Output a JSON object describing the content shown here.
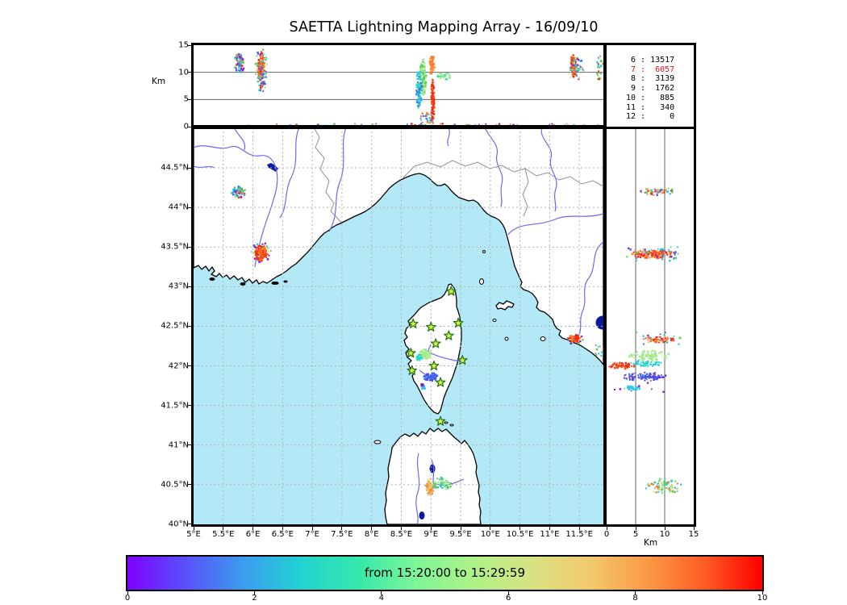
{
  "title": "SAETTA Lightning Mapping Array - 16/09/10",
  "axes": {
    "top": {
      "ylabel": "Km",
      "yticks": [
        {
          "km": 15,
          "label": "15"
        },
        {
          "km": 10,
          "label": "10"
        },
        {
          "km": 5,
          "label": "5"
        },
        {
          "km": 0,
          "label": "0"
        }
      ]
    },
    "map": {
      "lon_ticks": [
        {
          "deg": 5,
          "label": "5°E"
        },
        {
          "deg": 5.5,
          "label": "5.5°E"
        },
        {
          "deg": 6,
          "label": "6°E"
        },
        {
          "deg": 6.5,
          "label": "6.5°E"
        },
        {
          "deg": 7,
          "label": "7°E"
        },
        {
          "deg": 7.5,
          "label": "7.5°E"
        },
        {
          "deg": 8,
          "label": "8°E"
        },
        {
          "deg": 8.5,
          "label": "8.5°E"
        },
        {
          "deg": 9,
          "label": "9°E"
        },
        {
          "deg": 9.5,
          "label": "9.5°E"
        },
        {
          "deg": 10,
          "label": "10°E"
        },
        {
          "deg": 10.5,
          "label": "10.5°E"
        },
        {
          "deg": 11,
          "label": "11°E"
        },
        {
          "deg": 11.5,
          "label": "11.5°E"
        }
      ],
      "lat_ticks": [
        {
          "deg": 44.5,
          "label": "44.5°N"
        },
        {
          "deg": 44,
          "label": "44°N"
        },
        {
          "deg": 43.5,
          "label": "43.5°N"
        },
        {
          "deg": 43,
          "label": "43°N"
        },
        {
          "deg": 42.5,
          "label": "42.5°N"
        },
        {
          "deg": 42,
          "label": "42°N"
        },
        {
          "deg": 41.5,
          "label": "41.5°N"
        },
        {
          "deg": 41,
          "label": "41°N"
        },
        {
          "deg": 40.5,
          "label": "40.5°N"
        },
        {
          "deg": 40,
          "label": "40°N"
        }
      ]
    },
    "right": {
      "xlabel": "Km",
      "xticks": [
        {
          "km": 0,
          "label": "0"
        },
        {
          "km": 5,
          "label": "5"
        },
        {
          "km": 10,
          "label": "10"
        },
        {
          "km": 15,
          "label": "15"
        }
      ]
    }
  },
  "stats": {
    "rows": [
      {
        "label": "6",
        "value": "13517",
        "highlight": false
      },
      {
        "label": "7",
        "value": "6057",
        "highlight": true
      },
      {
        "label": "8",
        "value": "3139",
        "highlight": false
      },
      {
        "label": "9",
        "value": "1762",
        "highlight": false
      },
      {
        "label": "10",
        "value": "885",
        "highlight": false
      },
      {
        "label": "11",
        "value": "340",
        "highlight": false
      },
      {
        "label": "12",
        "value": "0",
        "highlight": false
      }
    ]
  },
  "colorbar": {
    "label": "from 15:20:00 to 15:29:59",
    "ticks": [
      "0",
      "2",
      "4",
      "6",
      "8",
      "10"
    ],
    "gradient": [
      "#7f00ff",
      "#5a50fa",
      "#3b9cee",
      "#22d2d2",
      "#35e8ac",
      "#7ef598",
      "#aef287",
      "#d8e383",
      "#f2c96e",
      "#fa9a46",
      "#fd5c24",
      "#ff0000"
    ]
  },
  "colors": {
    "sea": "#b3e9f7",
    "land": "#ffffff",
    "coast": "#000000",
    "river": "#6a6af0",
    "lake": "#0a1a9a",
    "boundary": "#909090",
    "grid_dash": "#b0b0b0",
    "panel_line": "#666666",
    "station_fill": "#d9f33c",
    "station_stroke": "#267a1e",
    "stat_highlight": "#ee1111",
    "dot_palette": {
      "purple": "#8a18e8",
      "indigo": "#5246dd",
      "blue": "#3a6ef2",
      "cyan": "#2fc8e8",
      "teal": "#2edfb2",
      "lightgreen": "#a4e98c",
      "green": "#54cc54",
      "tan": "#e2cb74",
      "orange": "#f9822e",
      "orangered": "#f85218",
      "red": "#f02810"
    }
  },
  "chart_data": {
    "type": "scatter",
    "title": "SAETTA Lightning Mapping Array - 16/09/10",
    "time_window": "from 15:20:00 to 15:29:59",
    "colorbar_range": [
      0,
      10
    ],
    "projection": {
      "lon_range_deg_e": [
        5,
        11.9
      ],
      "lat_range_deg_n": [
        40,
        45.01
      ],
      "alt_range_km": [
        0,
        15
      ]
    },
    "counts_table": [
      [
        "6",
        "13517"
      ],
      [
        "7",
        "6057"
      ],
      [
        "8",
        "3139"
      ],
      [
        "9",
        "1762"
      ],
      [
        "10",
        "885"
      ],
      [
        "11",
        "340"
      ],
      [
        "12",
        "0"
      ]
    ],
    "stations_lonlat": [
      [
        9.34,
        42.94
      ],
      [
        8.7,
        42.53
      ],
      [
        9.0,
        42.49
      ],
      [
        9.46,
        42.54
      ],
      [
        9.3,
        42.38
      ],
      [
        9.08,
        42.28
      ],
      [
        8.66,
        42.16
      ],
      [
        9.53,
        42.07
      ],
      [
        9.05,
        42.0
      ],
      [
        8.68,
        41.94
      ],
      [
        9.16,
        41.79
      ],
      [
        9.16,
        41.3
      ]
    ],
    "clusters": [
      {
        "view": "lon_alt",
        "u": 5.77,
        "v": 11.7,
        "ru": 0.085,
        "rv": 1.9,
        "n": 80,
        "colors": [
          "cyan",
          "teal",
          "green",
          "orange",
          "purple",
          "blue",
          "red"
        ]
      },
      {
        "view": "lon_alt",
        "u": 6.14,
        "v": 10.4,
        "ru": 0.055,
        "rv": 3.4,
        "n": 150,
        "colors": [
          "red",
          "orangered",
          "orange"
        ]
      },
      {
        "view": "lon_alt",
        "u": 6.14,
        "v": 10.2,
        "ru": 0.1,
        "rv": 4.3,
        "n": 60,
        "colors": [
          "cyan",
          "teal",
          "green",
          "purple",
          "blue",
          "tan"
        ]
      },
      {
        "view": "lon_alt",
        "u": 8.87,
        "v": 9.2,
        "ru": 0.065,
        "rv": 3.3,
        "n": 110,
        "colors": [
          "lightgreen",
          "green"
        ]
      },
      {
        "view": "lon_alt",
        "u": 8.8,
        "v": 7.0,
        "ru": 0.05,
        "rv": 3.7,
        "n": 100,
        "colors": [
          "cyan",
          "teal",
          "blue"
        ]
      },
      {
        "view": "lon_alt",
        "u": 9.03,
        "v": 4.7,
        "ru": 0.032,
        "rv": 4.2,
        "n": 130,
        "colors": [
          "red",
          "orangered"
        ]
      },
      {
        "view": "lon_alt",
        "u": 9.22,
        "v": 9.3,
        "ru": 0.12,
        "rv": 0.8,
        "n": 40,
        "colors": [
          "lightgreen",
          "teal"
        ]
      },
      {
        "view": "lon_alt",
        "u": 9.02,
        "v": 11.4,
        "ru": 0.05,
        "rv": 1.9,
        "n": 60,
        "colors": [
          "orange"
        ]
      },
      {
        "view": "lon_alt",
        "u": 8.93,
        "v": 1.2,
        "ru": 0.11,
        "rv": 1.3,
        "n": 30,
        "colors": [
          "cyan",
          "green",
          "orange",
          "blue"
        ],
        "uniform": true
      },
      {
        "view": "lon_alt",
        "u": 11.4,
        "v": 11.2,
        "ru": 0.05,
        "rv": 2.1,
        "n": 80,
        "colors": [
          "red",
          "orangered",
          "orange"
        ]
      },
      {
        "view": "lon_alt",
        "u": 11.45,
        "v": 10.7,
        "ru": 0.125,
        "rv": 2.7,
        "n": 45,
        "colors": [
          "cyan",
          "purple",
          "green",
          "tan",
          "blue"
        ]
      },
      {
        "view": "lon_alt",
        "u": 11.85,
        "v": 10.8,
        "ru": 0.07,
        "rv": 2.3,
        "n": 25,
        "colors": [
          "green",
          "red",
          "cyan",
          "orange"
        ]
      },
      {
        "view": "lon_alt",
        "u": 8.8,
        "v": 0.25,
        "ru": 3.05,
        "rv": 0.3,
        "n": 55,
        "colors": [
          "blue",
          "cyan",
          "orange",
          "green",
          "purple",
          "red"
        ],
        "uniform": true
      },
      {
        "view": "map",
        "u": 5.76,
        "v": 44.19,
        "ru": 0.12,
        "rv": 0.08,
        "n": 70,
        "colors": [
          "cyan",
          "teal",
          "orange",
          "red",
          "green",
          "purple",
          "blue"
        ]
      },
      {
        "view": "map",
        "u": 6.14,
        "v": 43.42,
        "ru": 0.17,
        "rv": 0.14,
        "n": 35,
        "colors": [
          "purple",
          "cyan",
          "green",
          "tan"
        ]
      },
      {
        "view": "map",
        "u": 6.14,
        "v": 43.42,
        "ru": 0.11,
        "rv": 0.1,
        "n": 130,
        "colors": [
          "orange",
          "red",
          "orangered"
        ]
      },
      {
        "view": "map",
        "u": 8.9,
        "v": 42.15,
        "ru": 0.1,
        "rv": 0.065,
        "n": 75,
        "colors": [
          "lightgreen"
        ]
      },
      {
        "view": "map",
        "u": 8.8,
        "v": 42.1,
        "ru": 0.055,
        "rv": 0.05,
        "n": 30,
        "colors": [
          "cyan",
          "teal"
        ]
      },
      {
        "view": "map",
        "u": 9.0,
        "v": 41.86,
        "ru": 0.13,
        "rv": 0.05,
        "n": 75,
        "colors": [
          "indigo",
          "blue"
        ]
      },
      {
        "view": "map",
        "u": 8.87,
        "v": 41.73,
        "ru": 0.04,
        "rv": 0.03,
        "n": 12,
        "colors": [
          "cyan"
        ]
      },
      {
        "view": "map",
        "u": 8.85,
        "v": 41.76,
        "ru": 0.02,
        "rv": 0.015,
        "n": 5,
        "colors": [
          "purple"
        ]
      },
      {
        "view": "map",
        "u": 11.43,
        "v": 42.34,
        "ru": 0.16,
        "rv": 0.065,
        "n": 20,
        "colors": [
          "blue",
          "purple",
          "cyan",
          "green"
        ]
      },
      {
        "view": "map",
        "u": 11.42,
        "v": 42.34,
        "ru": 0.12,
        "rv": 0.05,
        "n": 55,
        "colors": [
          "orange",
          "red"
        ]
      },
      {
        "view": "map",
        "u": 11.86,
        "v": 42.15,
        "ru": 0.09,
        "rv": 0.13,
        "n": 18,
        "colors": [
          "green",
          "orange",
          "cyan",
          "tan"
        ],
        "uniform": true
      },
      {
        "view": "map",
        "u": 8.99,
        "v": 40.47,
        "ru": 0.08,
        "rv": 0.11,
        "n": 70,
        "colors": [
          "orange",
          "tan"
        ]
      },
      {
        "view": "map",
        "u": 9.18,
        "v": 40.51,
        "ru": 0.17,
        "rv": 0.08,
        "n": 55,
        "colors": [
          "lightgreen",
          "green",
          "cyan"
        ]
      },
      {
        "view": "alt_lat",
        "u": 8.9,
        "v": 44.2,
        "ru": 3.1,
        "rv": 0.05,
        "n": 60,
        "colors": [
          "cyan",
          "green",
          "orange",
          "purple",
          "blue",
          "red",
          "tan"
        ]
      },
      {
        "view": "alt_lat",
        "u": 8.0,
        "v": 43.41,
        "ru": 4.0,
        "rv": 0.055,
        "n": 150,
        "colors": [
          "red",
          "orangered",
          "orange"
        ]
      },
      {
        "view": "alt_lat",
        "u": 8.0,
        "v": 43.41,
        "ru": 4.6,
        "rv": 0.09,
        "n": 40,
        "colors": [
          "cyan",
          "purple",
          "green",
          "blue",
          "tan"
        ],
        "uniform": true
      },
      {
        "view": "alt_lat",
        "u": 8.8,
        "v": 42.33,
        "ru": 2.9,
        "rv": 0.04,
        "n": 55,
        "colors": [
          "orange",
          "red"
        ]
      },
      {
        "view": "alt_lat",
        "u": 9.3,
        "v": 42.35,
        "ru": 4.3,
        "rv": 0.08,
        "n": 15,
        "colors": [
          "cyan",
          "blue",
          "purple",
          "green"
        ],
        "uniform": true
      },
      {
        "view": "alt_lat",
        "u": 7.4,
        "v": 42.13,
        "ru": 3.6,
        "rv": 0.065,
        "n": 90,
        "colors": [
          "lightgreen"
        ]
      },
      {
        "view": "alt_lat",
        "u": 6.7,
        "v": 42.03,
        "ru": 2.8,
        "rv": 0.04,
        "n": 55,
        "colors": [
          "cyan",
          "teal"
        ]
      },
      {
        "view": "alt_lat",
        "u": 2.6,
        "v": 42.0,
        "ru": 2.4,
        "rv": 0.04,
        "n": 65,
        "colors": [
          "red",
          "orangered"
        ]
      },
      {
        "view": "alt_lat",
        "u": 6.5,
        "v": 41.86,
        "ru": 3.9,
        "rv": 0.05,
        "n": 80,
        "colors": [
          "indigo",
          "blue"
        ]
      },
      {
        "view": "alt_lat",
        "u": 4.4,
        "v": 41.72,
        "ru": 1.7,
        "rv": 0.03,
        "n": 30,
        "colors": [
          "cyan"
        ]
      },
      {
        "view": "alt_lat",
        "u": 5.5,
        "v": 41.8,
        "ru": 4.8,
        "rv": 0.13,
        "n": 14,
        "colors": [
          "purple"
        ],
        "uniform": true
      },
      {
        "view": "alt_lat",
        "u": 9.8,
        "v": 40.48,
        "ru": 3.1,
        "rv": 0.1,
        "n": 80,
        "colors": [
          "lightgreen",
          "orange",
          "cyan",
          "green",
          "tan"
        ]
      }
    ]
  }
}
